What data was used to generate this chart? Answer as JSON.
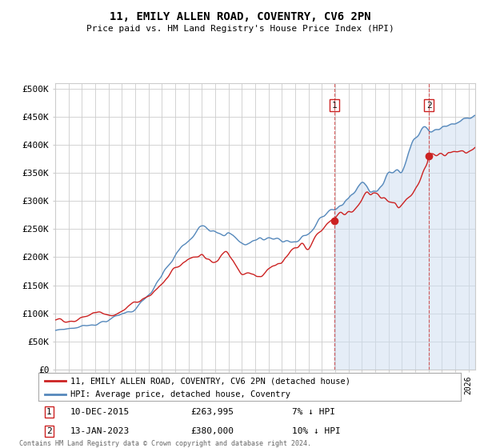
{
  "title": "11, EMILY ALLEN ROAD, COVENTRY, CV6 2PN",
  "subtitle": "Price paid vs. HM Land Registry's House Price Index (HPI)",
  "ylabel_ticks": [
    "£0",
    "£50K",
    "£100K",
    "£150K",
    "£200K",
    "£250K",
    "£300K",
    "£350K",
    "£400K",
    "£450K",
    "£500K"
  ],
  "ytick_values": [
    0,
    50000,
    100000,
    150000,
    200000,
    250000,
    300000,
    350000,
    400000,
    450000,
    500000
  ],
  "ylim": [
    0,
    510000
  ],
  "xlim_start": 1995.0,
  "xlim_end": 2026.5,
  "hpi_color": "#5588bb",
  "hpi_fill_color": "#ccddf0",
  "price_color": "#cc2222",
  "marker1_date": 2015.95,
  "marker1_price": 263995,
  "marker2_date": 2023.04,
  "marker2_price": 380000,
  "legend_label1": "11, EMILY ALLEN ROAD, COVENTRY, CV6 2PN (detached house)",
  "legend_label2": "HPI: Average price, detached house, Coventry",
  "bg_color": "#ffffff",
  "grid_color": "#cccccc",
  "title_fontsize": 10,
  "subtitle_fontsize": 8
}
